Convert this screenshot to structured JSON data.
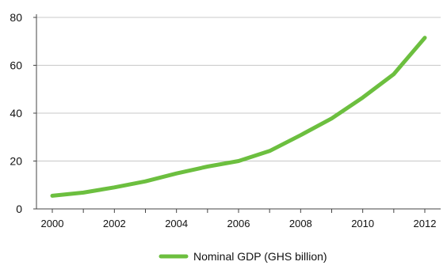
{
  "chart_data": {
    "type": "line",
    "title": "",
    "xlabel": "",
    "ylabel": "",
    "x": [
      2000,
      2001,
      2002,
      2003,
      2004,
      2005,
      2006,
      2007,
      2008,
      2009,
      2010,
      2011,
      2012
    ],
    "xtick_labels": [
      "2000",
      "2002",
      "2004",
      "2006",
      "2008",
      "2010",
      "2012"
    ],
    "ylim": [
      0,
      80
    ],
    "yticks": [
      0,
      20,
      40,
      60,
      80
    ],
    "ytick_labels": [
      "0",
      "20",
      "40",
      "60",
      "80"
    ],
    "grid": "horizontal",
    "legend_position": "bottom",
    "series": [
      {
        "name": "Nominal GDP (GHS billion)",
        "color": "#6cbf3f",
        "values": [
          5.5,
          6.8,
          9.0,
          11.5,
          14.8,
          17.7,
          20.0,
          24.2,
          30.8,
          37.8,
          46.5,
          56.3,
          71.5
        ]
      }
    ]
  }
}
